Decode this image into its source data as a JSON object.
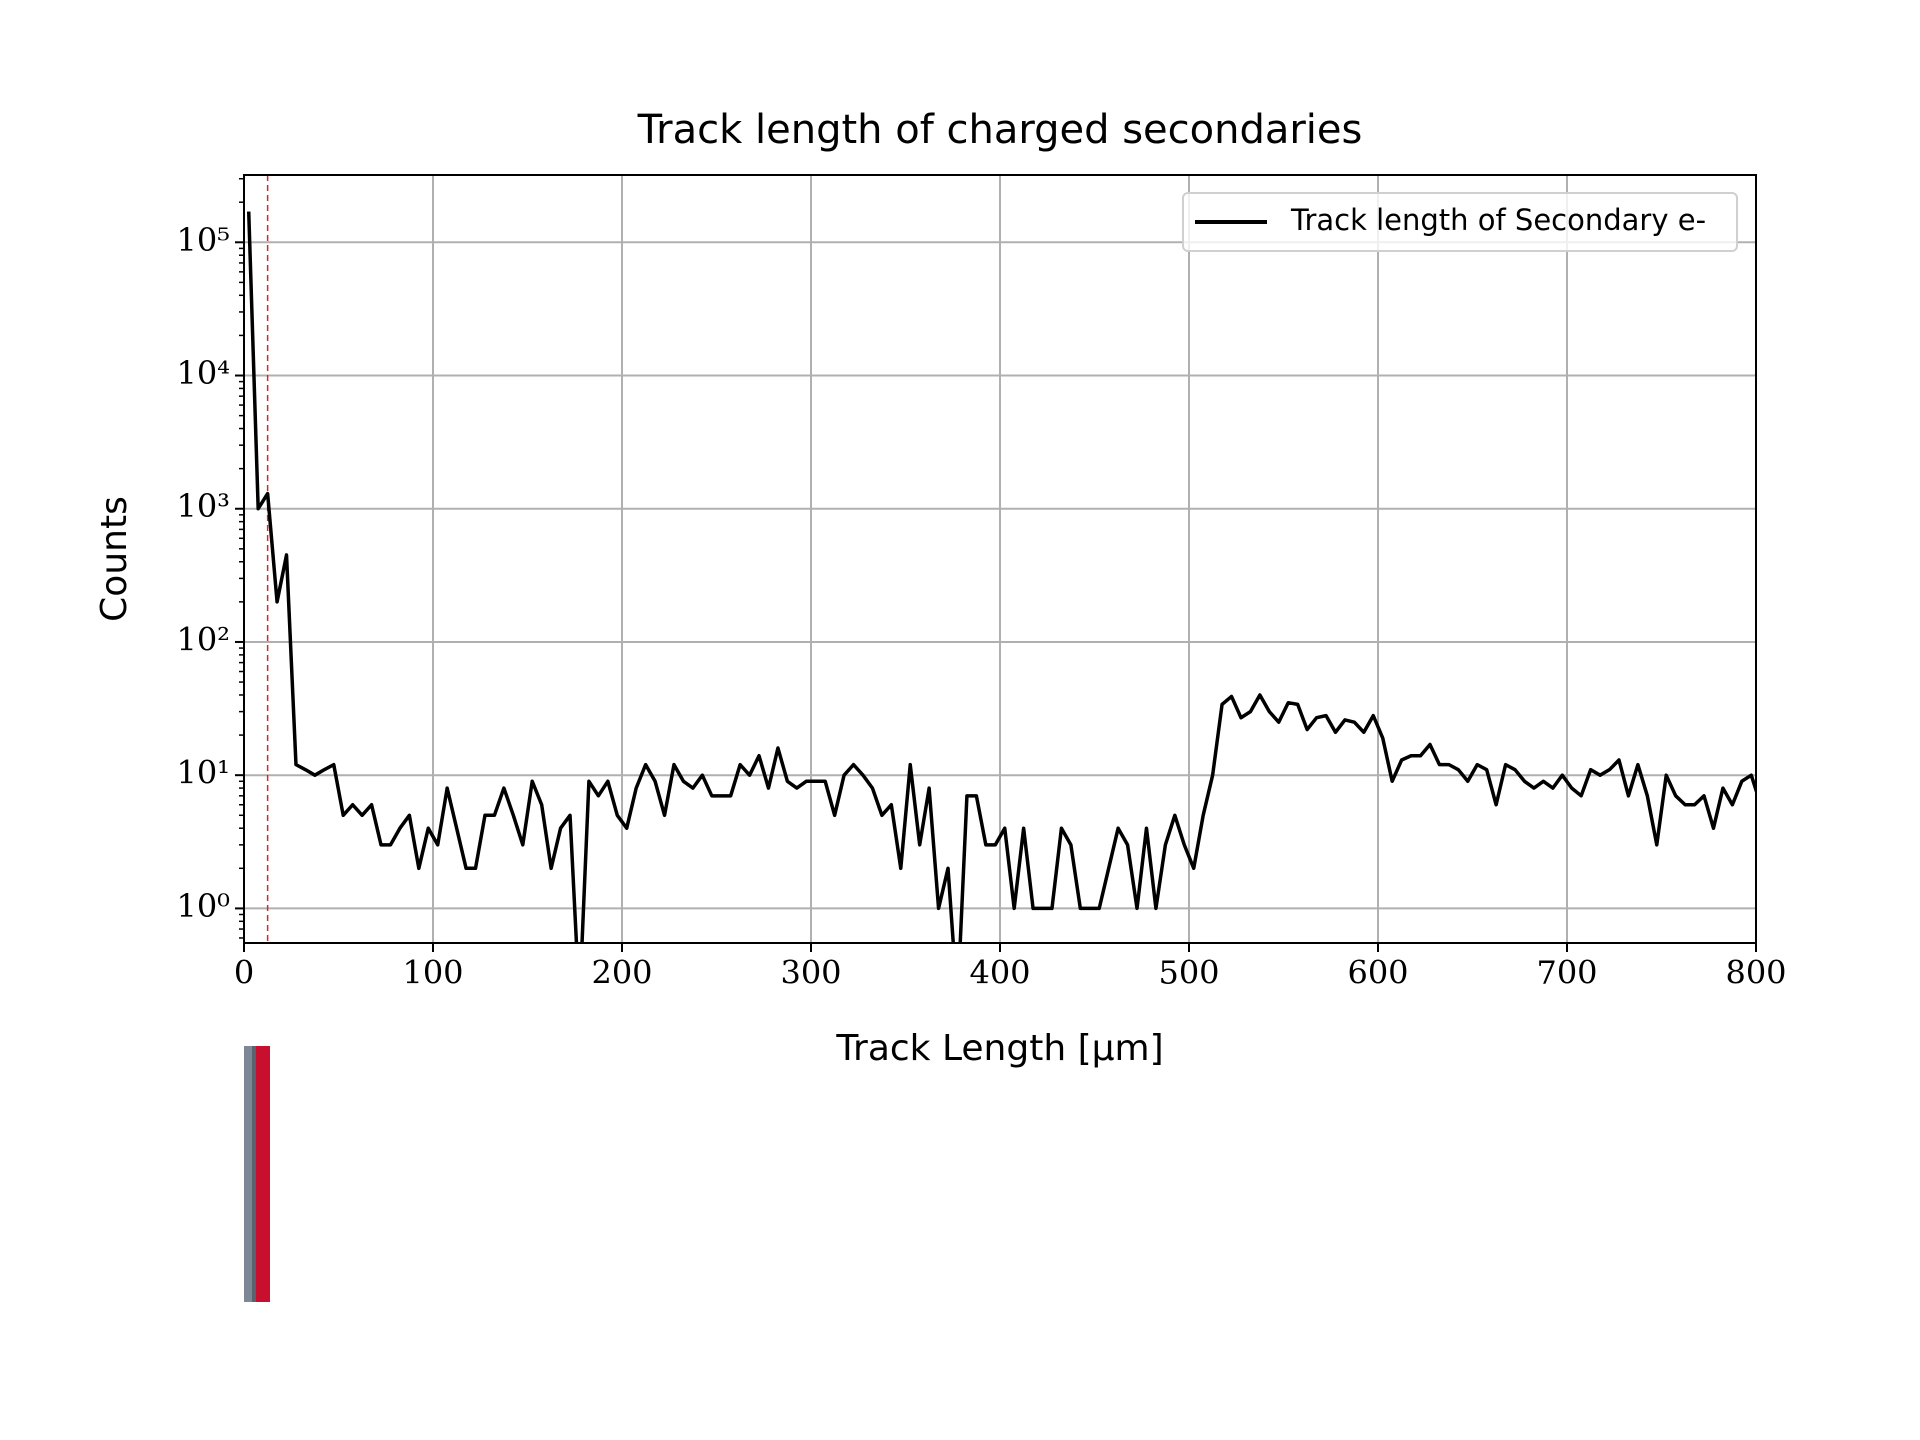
{
  "chart_data": {
    "type": "line",
    "title": "Track length of charged secondaries",
    "xlabel": "Track Length [μm]",
    "ylabel": "Counts",
    "log_y": true,
    "grid": true,
    "legend": "upper right",
    "x": [
      2.5,
      7.5,
      12.5,
      17.5,
      22.5,
      27.5,
      32.5,
      37.5,
      42.5,
      47.5,
      52.5,
      57.5,
      62.5,
      67.5,
      72.5,
      77.5,
      82.5,
      87.5,
      92.5,
      97.5,
      102.5,
      107.5,
      112.5,
      117.5,
      122.5,
      127.5,
      132.5,
      137.5,
      142.5,
      147.5,
      152.5,
      157.5,
      162.5,
      167.5,
      172.5,
      177.5,
      182.5,
      187.5,
      192.5,
      197.5,
      202.5,
      207.5,
      212.5,
      217.5,
      222.5,
      227.5,
      232.5,
      237.5,
      242.5,
      247.5,
      252.5,
      257.5,
      262.5,
      267.5,
      272.5,
      277.5,
      282.5,
      287.5,
      292.5,
      297.5,
      302.5,
      307.5,
      312.5,
      317.5,
      322.5,
      327.5,
      332.5,
      337.5,
      342.5,
      347.5,
      352.5,
      357.5,
      362.5,
      367.5,
      372.5,
      377.5,
      382.5,
      387.5,
      392.5,
      397.5,
      402.5,
      407.5,
      412.5,
      417.5,
      422.5,
      427.5,
      432.5,
      437.5,
      442.5,
      447.5,
      452.5,
      457.5,
      462.5,
      467.5,
      472.5,
      477.5,
      482.5,
      487.5,
      492.5,
      497.5,
      502.5,
      507.5,
      512.5,
      517.5,
      522.5,
      527.5,
      532.5,
      537.5,
      542.5,
      547.5,
      552.5,
      557.5,
      562.5,
      567.5,
      572.5,
      577.5,
      582.5,
      587.5,
      592.5,
      597.5,
      602.5,
      607.5,
      612.5,
      617.5,
      622.5,
      627.5,
      632.5,
      637.5,
      642.5,
      647.5,
      652.5,
      657.5,
      662.5,
      667.5,
      672.5,
      677.5,
      682.5,
      687.5,
      692.5,
      697.5,
      702.5,
      707.5,
      712.5,
      717.5,
      722.5,
      727.5,
      732.5,
      737.5,
      742.5,
      747.5,
      752.5,
      757.5,
      762.5,
      767.5,
      772.5,
      777.5,
      782.5,
      787.5,
      792.5,
      797.5,
      802.5
    ],
    "series": [
      {
        "name": "Track length of Secondary e-",
        "color": "#000000",
        "values": [
          170000,
          1000,
          1300,
          200,
          450,
          12,
          11,
          10,
          11,
          12,
          5,
          6,
          5,
          6,
          3,
          3,
          4,
          5,
          2,
          4,
          3,
          8,
          4,
          2,
          2,
          5,
          5,
          8,
          5,
          3,
          9,
          6,
          2,
          4,
          5,
          0,
          9,
          7,
          9,
          5,
          4,
          8,
          12,
          9,
          5,
          12,
          9,
          8,
          10,
          7,
          7,
          7,
          12,
          10,
          14,
          8,
          16,
          9,
          8,
          9,
          9,
          9,
          5,
          10,
          12,
          10,
          8,
          5,
          6,
          2,
          12,
          3,
          8,
          1,
          2,
          0,
          7,
          7,
          3,
          3,
          4,
          1,
          4,
          1,
          1,
          1,
          4,
          3,
          1,
          1,
          1,
          2,
          4,
          3,
          1,
          4,
          1,
          3,
          5,
          3,
          2,
          5,
          10,
          34,
          39,
          27,
          30,
          40,
          30,
          25,
          35,
          34,
          22,
          27,
          28,
          21,
          26,
          25,
          21,
          28,
          19,
          9,
          13,
          14,
          14,
          17,
          12,
          12,
          11,
          9,
          12,
          11,
          6,
          12,
          11,
          9,
          8,
          9,
          8,
          10,
          8,
          7,
          11,
          10,
          11,
          13,
          7,
          12,
          7,
          3,
          10,
          7,
          6,
          6,
          7,
          4,
          8,
          6,
          9,
          10,
          6
        ]
      }
    ],
    "vlines": [
      {
        "x": 12.5,
        "color": "#d62728"
      }
    ],
    "xlim": [
      0,
      800
    ],
    "xticks": [
      0,
      100,
      200,
      300,
      400,
      500,
      600,
      700,
      800
    ],
    "ylim": [
      0.55,
      320000
    ],
    "yticks": [
      {
        "value": 1,
        "label": "10⁰"
      },
      {
        "value": 10,
        "label": "10¹"
      },
      {
        "value": 100,
        "label": "10²"
      },
      {
        "value": 1000,
        "label": "10³"
      },
      {
        "value": 10000,
        "label": "10⁴"
      },
      {
        "value": 100000,
        "label": "10⁵"
      }
    ],
    "yminorticks": [
      0.6,
      0.7,
      0.8,
      0.9,
      2,
      3,
      4,
      5,
      6,
      7,
      8,
      9,
      20,
      30,
      40,
      50,
      60,
      70,
      80,
      90,
      200,
      300,
      400,
      500,
      600,
      700,
      800,
      900,
      2000,
      3000,
      4000,
      5000,
      6000,
      7000,
      8000,
      9000,
      20000,
      30000,
      40000,
      50000,
      60000,
      70000,
      80000,
      90000,
      200000,
      300000
    ]
  }
}
